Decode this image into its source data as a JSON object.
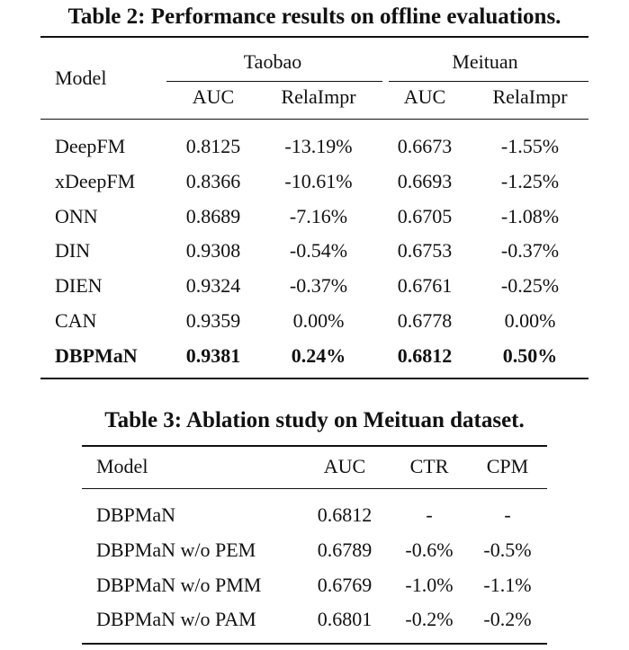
{
  "table2": {
    "caption": "Table 2: Performance results on offline evaluations.",
    "header": {
      "model": "Model",
      "group1": "Taobao",
      "group2": "Meituan",
      "sub": [
        "AUC",
        "RelaImpr",
        "AUC",
        "RelaImpr"
      ]
    },
    "rows": [
      [
        "DeepFM",
        "0.8125",
        "-13.19%",
        "0.6673",
        "-1.55%"
      ],
      [
        "xDeepFM",
        "0.8366",
        "-10.61%",
        "0.6693",
        "-1.25%"
      ],
      [
        "ONN",
        "0.8689",
        "-7.16%",
        "0.6705",
        "-1.08%"
      ],
      [
        "DIN",
        "0.9308",
        "-0.54%",
        "0.6753",
        "-0.37%"
      ],
      [
        "DIEN",
        "0.9324",
        "-0.37%",
        "0.6761",
        "-0.25%"
      ],
      [
        "CAN",
        "0.9359",
        "0.00%",
        "0.6778",
        "0.00%"
      ],
      [
        "DBPMaN",
        "0.9381",
        "0.24%",
        "0.6812",
        "0.50%"
      ]
    ]
  },
  "table3": {
    "caption": "Table 3: Ablation study on Meituan dataset.",
    "header": [
      "Model",
      "AUC",
      "CTR",
      "CPM"
    ],
    "rows": [
      [
        "DBPMaN",
        "0.6812",
        "-",
        "-"
      ],
      [
        "DBPMaN w/o PEM",
        "0.6789",
        "-0.6%",
        "-0.5%"
      ],
      [
        "DBPMaN w/o PMM",
        "0.6769",
        "-1.0%",
        "-1.1%"
      ],
      [
        "DBPMaN w/o PAM",
        "0.6801",
        "-0.2%",
        "-0.2%"
      ]
    ]
  }
}
